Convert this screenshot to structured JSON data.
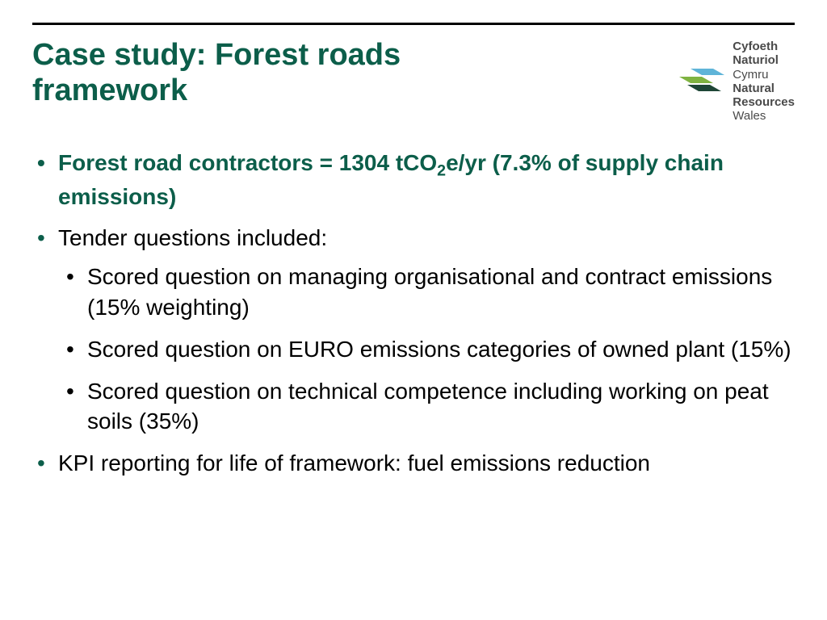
{
  "colors": {
    "title": "#0c5e4a",
    "bullet_l1": "#0c5e4a",
    "bullet_l2": "#000000",
    "rule": "#000000",
    "body_text": "#000000",
    "background": "#ffffff",
    "logo_text": "#4a4a4a",
    "logo_blue": "#5fb4d8",
    "logo_green": "#7fb341",
    "logo_dark": "#1e4636"
  },
  "typography": {
    "title_fontsize": 38,
    "body_fontsize": 28,
    "logo_fontsize": 15,
    "font_family": "Arial"
  },
  "title": "Case study: Forest roads framework",
  "logo": {
    "line1a": "Cyfoeth",
    "line1b": "Naturiol",
    "line2": "Cymru",
    "line3a": "Natural",
    "line3b": "Resources",
    "line4": "Wales"
  },
  "bullets": [
    {
      "html": "Forest road contractors = 1304 tCO<span class=\"sub\">2</span>e/yr (7.3% of supply chain emissions)",
      "highlight": true
    },
    {
      "html": "Tender questions included:",
      "highlight": false,
      "children": [
        "Scored question on managing organisational and contract emissions (15% weighting)",
        "Scored question on EURO emissions categories of owned plant (15%)",
        "Scored question on technical competence including working on peat soils (35%)"
      ]
    },
    {
      "html": "KPI reporting for life of framework: fuel emissions reduction",
      "highlight": false
    }
  ]
}
